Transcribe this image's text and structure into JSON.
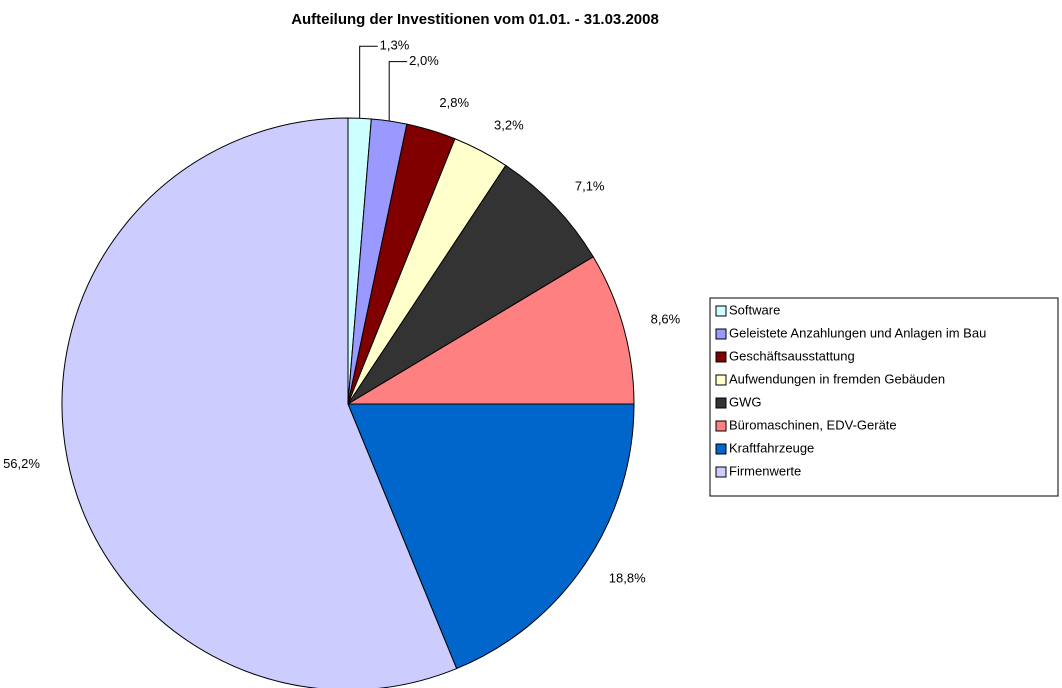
{
  "chart_data": {
    "type": "pie",
    "title": "Aufteilung der Investitionen vom 01.01. - 31.03.2008",
    "categories": [
      "Software",
      "Geleistete Anzahlungen und Anlagen im Bau",
      "Geschäftsausstattung",
      "Aufwendungen in fremden Gebäuden",
      "GWG",
      "Büromaschinen, EDV-Geräte",
      "Kraftfahrzeuge",
      "Firmenwerte"
    ],
    "values": [
      1.3,
      2.0,
      2.8,
      3.2,
      7.1,
      8.6,
      18.8,
      56.2
    ],
    "value_labels": [
      "1,3%",
      "2,0%",
      "2,8%",
      "3,2%",
      "7,1%",
      "8,6%",
      "18,8%",
      "56,2%"
    ],
    "colors": [
      "#ccffff",
      "#9999ff",
      "#800000",
      "#ffffcc",
      "#333333",
      "#ff8080",
      "#0066cc",
      "#ccccff"
    ],
    "legend": "right"
  }
}
